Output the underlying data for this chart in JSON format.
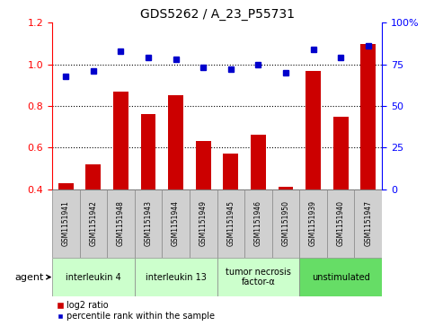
{
  "title": "GDS5262 / A_23_P55731",
  "samples": [
    "GSM1151941",
    "GSM1151942",
    "GSM1151948",
    "GSM1151943",
    "GSM1151944",
    "GSM1151949",
    "GSM1151945",
    "GSM1151946",
    "GSM1151950",
    "GSM1151939",
    "GSM1151940",
    "GSM1151947"
  ],
  "log2_ratio": [
    0.43,
    0.52,
    0.87,
    0.76,
    0.85,
    0.63,
    0.57,
    0.66,
    0.41,
    0.97,
    0.75,
    1.1
  ],
  "percentile": [
    68,
    71,
    83,
    79,
    78,
    73,
    72,
    75,
    70,
    84,
    79,
    86
  ],
  "bar_color": "#cc0000",
  "dot_color": "#0000cc",
  "ylim_left": [
    0.4,
    1.2
  ],
  "ylim_right": [
    0,
    100
  ],
  "yticks_left": [
    0.4,
    0.6,
    0.8,
    1.0,
    1.2
  ],
  "yticks_right": [
    0,
    25,
    50,
    75,
    100
  ],
  "dotted_lines": [
    0.6,
    0.8,
    1.0
  ],
  "groups": [
    {
      "label": "interleukin 4",
      "start": 0,
      "end": 2,
      "color": "#ccffcc"
    },
    {
      "label": "interleukin 13",
      "start": 3,
      "end": 5,
      "color": "#ccffcc"
    },
    {
      "label": "tumor necrosis\nfactor-α",
      "start": 6,
      "end": 8,
      "color": "#ccffcc"
    },
    {
      "label": "unstimulated",
      "start": 9,
      "end": 11,
      "color": "#66dd66"
    }
  ],
  "agent_label": "agent",
  "legend_bar_label": "log2 ratio",
  "legend_dot_label": "percentile rank within the sample",
  "bg_color_sample": "#d0d0d0",
  "bg_color_plot": "#ffffff"
}
